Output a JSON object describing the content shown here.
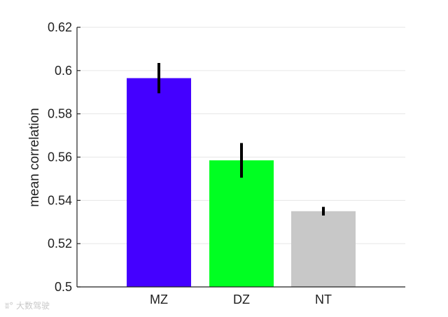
{
  "chart_data": {
    "type": "bar",
    "categories": [
      "MZ",
      "DZ",
      "NT"
    ],
    "values": [
      0.5965,
      0.5585,
      0.535
    ],
    "errors": [
      0.007,
      0.008,
      0.002
    ],
    "colors": [
      "#4400ff",
      "#00ff22",
      "#c8c8c8"
    ],
    "ylabel": "mean correlation",
    "ylim": [
      0.5,
      0.62
    ],
    "yticks": [
      0.5,
      0.52,
      0.54,
      0.56,
      0.58,
      0.6,
      0.62
    ],
    "ytick_labels": [
      "0.5",
      "0.52",
      "0.54",
      "0.56",
      "0.58",
      "0.6",
      "0.62"
    ],
    "grid": "horizontal"
  },
  "watermark": {
    "icon": "weibo-icon",
    "text": "大数驾驶"
  }
}
